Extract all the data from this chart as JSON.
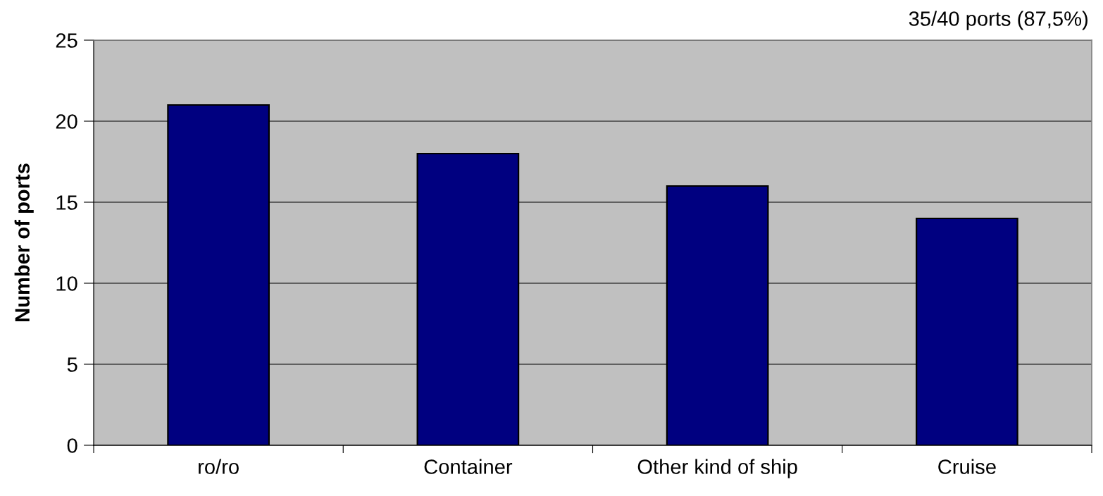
{
  "chart_data": {
    "type": "bar",
    "ylabel": "Number of ports",
    "categories": [
      "ro/ro",
      "Container",
      "Other kind of ship",
      "Cruise"
    ],
    "values": [
      21,
      18,
      16,
      14
    ],
    "color": "#000080",
    "ylim": [
      0,
      25
    ],
    "yticks": [
      0,
      5,
      10,
      15,
      20,
      25
    ],
    "grid": "y",
    "annotations": [
      "35/40 ports (87,5%)"
    ]
  }
}
